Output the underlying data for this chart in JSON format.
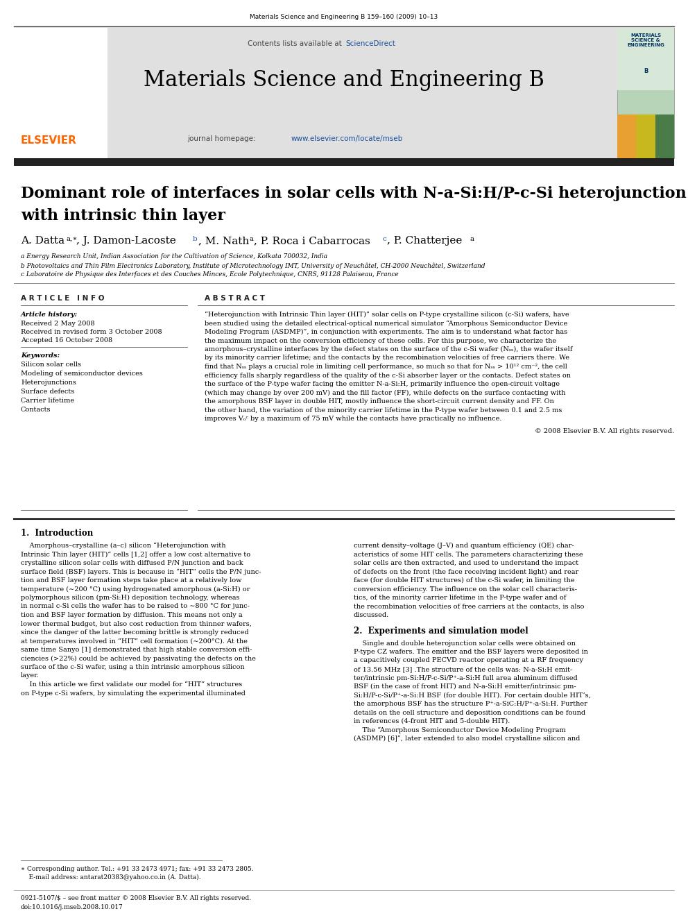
{
  "page_width": 9.92,
  "page_height": 13.23,
  "dpi": 100,
  "bg_color": "#ffffff",
  "top_citation": "Materials Science and Engineering B 159–160 (2009) 10–13",
  "journal_name": "Materials Science and Engineering B",
  "journal_homepage_url": "www.elsevier.com/locate/mseb",
  "contents_url": "ScienceDirect",
  "article_title_line1": "Dominant role of interfaces in solar cells with N-a-Si:H/P-c-Si heterojunction",
  "article_title_line2": "with intrinsic thin layer",
  "affil_a": "a Energy Research Unit, Indian Association for the Cultivation of Science, Kolkata 700032, India",
  "affil_b": "b Photovoltaics and Thin Film Electronics Laboratory, Institute of Microtechnology IMT, University of Neuchâtel, CH-2000 Neuchâtel, Switzerland",
  "affil_c": "c Laboratoire de Physique des Interfaces et des Couches Minces, Ecole Polytechnique, CNRS, 91128 Palaiseau, France",
  "article_info_header": "A R T I C L E   I N F O",
  "abstract_header": "A B S T R A C T",
  "article_history_label": "Article history:",
  "received_label": "Received 2 May 2008",
  "received_revised_label": "Received in revised form 3 October 2008",
  "accepted_label": "Accepted 16 October 2008",
  "keywords_label": "Keywords:",
  "keywords": [
    "Silicon solar cells",
    "Modeling of semiconductor devices",
    "Heterojunctions",
    "Surface defects",
    "Carrier lifetime",
    "Contacts"
  ],
  "section1_header": "1.  Introduction",
  "section2_header": "2.  Experiments and simulation model",
  "footer_issn": "0921-5107/$ – see front matter © 2008 Elsevier B.V. All rights reserved.",
  "footer_doi": "doi:10.1016/j.mseb.2008.10.017",
  "copyright": "© 2008 Elsevier B.V. All rights reserved.",
  "header_box_color": "#e0e0e0",
  "dark_bar_color": "#222222",
  "url_color": "#1a4f9c",
  "elsevier_orange": "#FF6600",
  "cover_blue": "#003366",
  "cover_green": "#5a8a5a"
}
